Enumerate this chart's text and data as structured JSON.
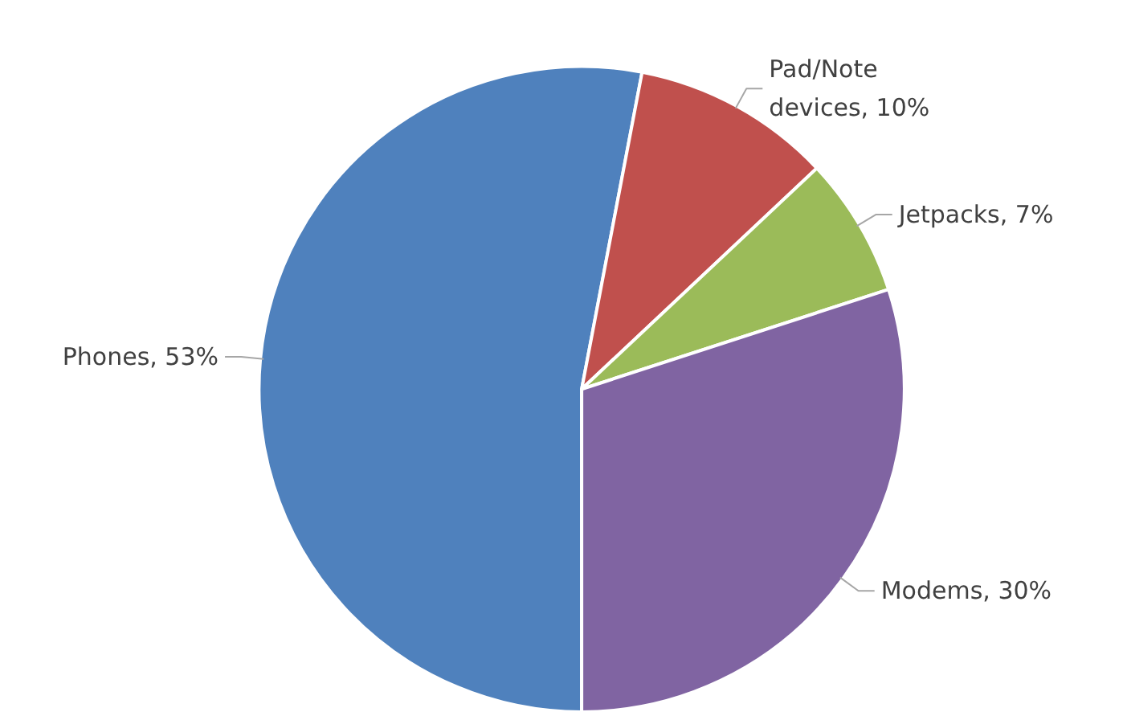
{
  "chart_data": {
    "type": "pie",
    "categories": [
      "Phones",
      "Pad/Note devices",
      "Jetpacks",
      "Modems"
    ],
    "values": [
      53,
      10,
      7,
      30
    ],
    "colors": [
      "#4f81bd",
      "#c0504d",
      "#9bbb59",
      "#8064a2"
    ],
    "value_labels": [
      "53%",
      "10%",
      "7%",
      "30%"
    ]
  }
}
